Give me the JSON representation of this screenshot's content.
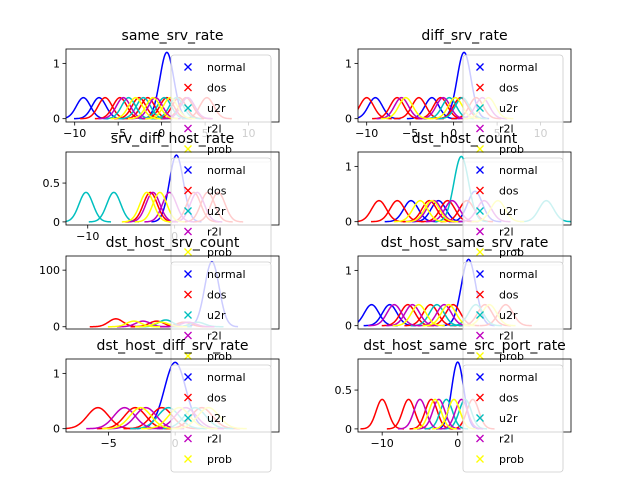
{
  "legend_names": [
    "normal",
    "dos",
    "u2r",
    "r2l",
    "prob"
  ],
  "colors": {
    "normal": "#0000ff",
    "dos": "#ff0000",
    "u2r": "#00bfbf",
    "r2l": "#bf00bf",
    "prob": "#ffff00"
  },
  "chart_data": [
    {
      "type": "line",
      "title": "same_srv_rate",
      "xlim": [
        -11,
        13.5
      ],
      "ylim": [
        -0.06,
        1.26
      ],
      "xticks": [
        -10,
        -5,
        0,
        5,
        10
      ],
      "yticks": [
        0,
        1
      ],
      "legend_position": "right",
      "series": [
        {
          "class": "normal",
          "centers": [
            0.6,
            -9.0,
            -7.2
          ],
          "peaks": [
            1.2,
            0.38,
            0.38
          ]
        },
        {
          "class": "dos",
          "centers": [
            -6.5,
            -4.8,
            -2.6,
            -1.6,
            0.6,
            2.0,
            2.8,
            5.2
          ],
          "peaks": [
            0.38,
            0.38,
            0.38,
            0.38,
            0.38,
            0.38,
            0.38,
            0.38
          ]
        },
        {
          "class": "u2r",
          "centers": [
            -3.8,
            -2.1,
            0.3,
            1.7
          ],
          "peaks": [
            0.38,
            0.38,
            0.38,
            0.38
          ]
        },
        {
          "class": "r2l",
          "centers": [
            -4.4,
            -0.7,
            3.0
          ],
          "peaks": [
            0.38,
            0.38,
            0.38
          ]
        },
        {
          "class": "prob",
          "centers": [
            -1.0,
            -3.0,
            1.0
          ],
          "peaks": [
            0.38,
            0.38,
            0.38
          ]
        }
      ]
    },
    {
      "type": "line",
      "title": "diff_srv_rate",
      "xlim": [
        -11,
        13.5
      ],
      "ylim": [
        -0.06,
        1.26
      ],
      "xticks": [
        -10,
        -5,
        0,
        5,
        10
      ],
      "yticks": [
        0,
        1
      ],
      "legend_position": "right",
      "series": [
        {
          "class": "normal",
          "centers": [
            1.2,
            -9.0,
            -2.5
          ],
          "peaks": [
            1.2,
            0.38,
            0.38
          ]
        },
        {
          "class": "dos",
          "centers": [
            -10.0,
            -6.5,
            -4.0,
            -1.5,
            0.8,
            2.6
          ],
          "peaks": [
            0.38,
            0.38,
            0.38,
            0.38,
            0.38,
            0.38
          ]
        },
        {
          "class": "u2r",
          "centers": [
            -0.5,
            1.0
          ],
          "peaks": [
            0.38,
            0.38
          ]
        },
        {
          "class": "r2l",
          "centers": [
            -6.0,
            -1.2,
            3.3
          ],
          "peaks": [
            0.38,
            0.38,
            0.38
          ]
        },
        {
          "class": "prob",
          "centers": [
            -5.5,
            0.2,
            4.0
          ],
          "peaks": [
            0.38,
            0.38,
            0.38
          ]
        }
      ]
    },
    {
      "type": "line",
      "title": "srv_diff_host_rate",
      "xlim": [
        -12.5,
        12
      ],
      "ylim": [
        -0.04,
        0.9
      ],
      "xticks": [
        -10,
        0
      ],
      "yticks": [
        0,
        0.5
      ],
      "legend_position": "right",
      "series": [
        {
          "class": "normal",
          "centers": [
            0.2
          ],
          "peaks": [
            0.86
          ]
        },
        {
          "class": "dos",
          "centers": [
            -2.8,
            2.2,
            3.8,
            5.0
          ],
          "peaks": [
            0.38,
            0.38,
            0.38,
            0.38
          ]
        },
        {
          "class": "u2r",
          "centers": [
            -10.2,
            -7.0
          ],
          "peaks": [
            0.38,
            0.38
          ]
        },
        {
          "class": "r2l",
          "centers": [
            -2.5,
            -0.6,
            2.6
          ],
          "peaks": [
            0.38,
            0.38,
            0.38
          ]
        },
        {
          "class": "prob",
          "centers": [
            -3.2,
            -1.7
          ],
          "peaks": [
            0.38,
            0.38
          ]
        }
      ]
    },
    {
      "type": "line",
      "title": "dst_host_count",
      "xlim": [
        -11.3,
        12
      ],
      "ylim": [
        -0.06,
        1.26
      ],
      "xticks": [],
      "yticks": [
        0,
        1
      ],
      "legend_position": "right",
      "series": [
        {
          "class": "normal",
          "centers": [
            1.5,
            -5.5,
            -2.5
          ],
          "peaks": [
            0.55,
            0.38,
            0.38
          ]
        },
        {
          "class": "dos",
          "centers": [
            -9.0,
            -7.0,
            -3.5,
            -1.5,
            0.6
          ],
          "peaks": [
            0.38,
            0.38,
            0.38,
            0.38,
            0.38
          ]
        },
        {
          "class": "u2r",
          "centers": [
            0.0,
            9.3
          ],
          "peaks": [
            1.18,
            0.38
          ]
        },
        {
          "class": "r2l",
          "centers": [
            -3.0,
            -1.0,
            2.5
          ],
          "peaks": [
            0.38,
            0.38,
            0.38
          ]
        },
        {
          "class": "prob",
          "centers": [
            -4.5,
            -3.2,
            4.0
          ],
          "peaks": [
            0.38,
            0.38,
            0.38
          ]
        }
      ]
    },
    {
      "type": "line",
      "title": "dst_host_srv_count",
      "xlim": [
        -11.5,
        12
      ],
      "ylim": [
        -4,
        125
      ],
      "xticks": [],
      "yticks": [
        0,
        100
      ],
      "legend_position": "right",
      "series": [
        {
          "class": "normal",
          "centers": [
            4.6
          ],
          "peaks": [
            115
          ]
        },
        {
          "class": "dos",
          "centers": [
            -6.0,
            -1.5,
            1.5
          ],
          "peaks": [
            14,
            10,
            8
          ]
        },
        {
          "class": "u2r",
          "centers": [
            -0.5,
            3.0
          ],
          "peaks": [
            12,
            8
          ]
        },
        {
          "class": "r2l",
          "centers": [
            -3.0,
            2.0
          ],
          "peaks": [
            10,
            8
          ]
        },
        {
          "class": "prob",
          "centers": [
            -4.0,
            -1.0
          ],
          "peaks": [
            10,
            8
          ]
        }
      ]
    },
    {
      "type": "line",
      "title": "dst_host_same_srv_rate",
      "xlim": [
        -11.5,
        12
      ],
      "ylim": [
        -0.06,
        1.26
      ],
      "xticks": [],
      "yticks": [
        0,
        1
      ],
      "legend_position": "right",
      "series": [
        {
          "class": "normal",
          "centers": [
            0.7,
            -10.0,
            -8.0
          ],
          "peaks": [
            1.2,
            0.38,
            0.38
          ]
        },
        {
          "class": "dos",
          "centers": [
            -6.0,
            -3.5,
            -1.0,
            2.5,
            4.8
          ],
          "peaks": [
            0.38,
            0.38,
            0.38,
            0.38,
            0.38
          ]
        },
        {
          "class": "u2r",
          "centers": [
            -2.8,
            1.5
          ],
          "peaks": [
            0.38,
            0.38
          ]
        },
        {
          "class": "r2l",
          "centers": [
            -7.5,
            -5.5,
            -2.0
          ],
          "peaks": [
            0.38,
            0.38,
            0.38
          ]
        },
        {
          "class": "prob",
          "centers": [
            -4.8,
            -1.5,
            3.0
          ],
          "peaks": [
            0.38,
            0.38,
            0.38
          ]
        }
      ]
    },
    {
      "type": "line",
      "title": "dst_host_diff_srv_rate",
      "xlim": [
        -8.2,
        7.8
      ],
      "ylim": [
        -0.06,
        1.26
      ],
      "xticks": [
        -5,
        0
      ],
      "yticks": [
        0,
        1
      ],
      "legend_position": "right",
      "series": [
        {
          "class": "normal",
          "centers": [
            0.0
          ],
          "peaks": [
            1.2
          ]
        },
        {
          "class": "dos",
          "centers": [
            -5.8,
            -3.0,
            -1.0,
            2.0
          ],
          "peaks": [
            0.38,
            0.38,
            0.38,
            0.38
          ]
        },
        {
          "class": "u2r",
          "centers": [
            -0.5,
            1.5
          ],
          "peaks": [
            0.38,
            0.38
          ]
        },
        {
          "class": "r2l",
          "centers": [
            -3.8,
            -2.2,
            0.8
          ],
          "peaks": [
            0.38,
            0.38,
            0.38
          ]
        },
        {
          "class": "prob",
          "centers": [
            -2.6,
            0.3,
            2.5
          ],
          "peaks": [
            0.38,
            0.38,
            0.38
          ]
        }
      ]
    },
    {
      "type": "line",
      "title": "dst_host_same_src_port_rate",
      "xlim": [
        -13.2,
        15
      ],
      "ylim": [
        -0.04,
        0.9
      ],
      "xticks": [
        -10,
        0
      ],
      "yticks": [
        0,
        0.5
      ],
      "legend_position": "right",
      "series": [
        {
          "class": "normal",
          "centers": [
            0.0
          ],
          "peaks": [
            0.86
          ]
        },
        {
          "class": "dos",
          "centers": [
            -10.0,
            -6.5,
            -3.5,
            2.0
          ],
          "peaks": [
            0.38,
            0.38,
            0.38,
            0.38
          ]
        },
        {
          "class": "u2r",
          "centers": [
            -1.5,
            1.0
          ],
          "peaks": [
            0.38,
            0.38
          ]
        },
        {
          "class": "r2l",
          "centers": [
            -5.0,
            -2.5,
            0.5
          ],
          "peaks": [
            0.38,
            0.38,
            0.38
          ]
        },
        {
          "class": "prob",
          "centers": [
            -3.0,
            -0.5
          ],
          "peaks": [
            0.38,
            0.38
          ]
        }
      ]
    }
  ]
}
